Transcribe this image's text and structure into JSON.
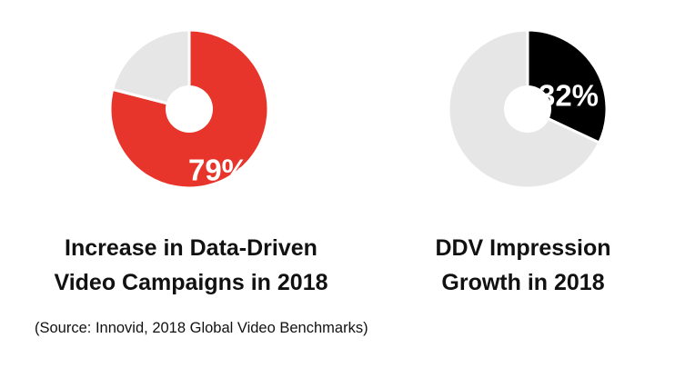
{
  "chart_data": [
    {
      "type": "pie",
      "title_lines": [
        "Increase in Data-Driven",
        "Video Campaigns in 2018"
      ],
      "value": 79,
      "label": "79%",
      "slices": [
        {
          "name": "highlight",
          "value": 79,
          "color": "#e8352b"
        },
        {
          "name": "remainder",
          "value": 21,
          "color": "#e6e6e6"
        }
      ],
      "label_color": "#ffffff"
    },
    {
      "type": "pie",
      "title_lines": [
        "DDV Impression",
        "Growth in 2018"
      ],
      "value": 32,
      "label": "32%",
      "slices": [
        {
          "name": "highlight",
          "value": 32,
          "color": "#000000"
        },
        {
          "name": "remainder",
          "value": 68,
          "color": "#e6e6e6"
        }
      ],
      "label_color": "#ffffff"
    }
  ],
  "source_text": "(Source: Innovid, 2018 Global Video Benchmarks)"
}
